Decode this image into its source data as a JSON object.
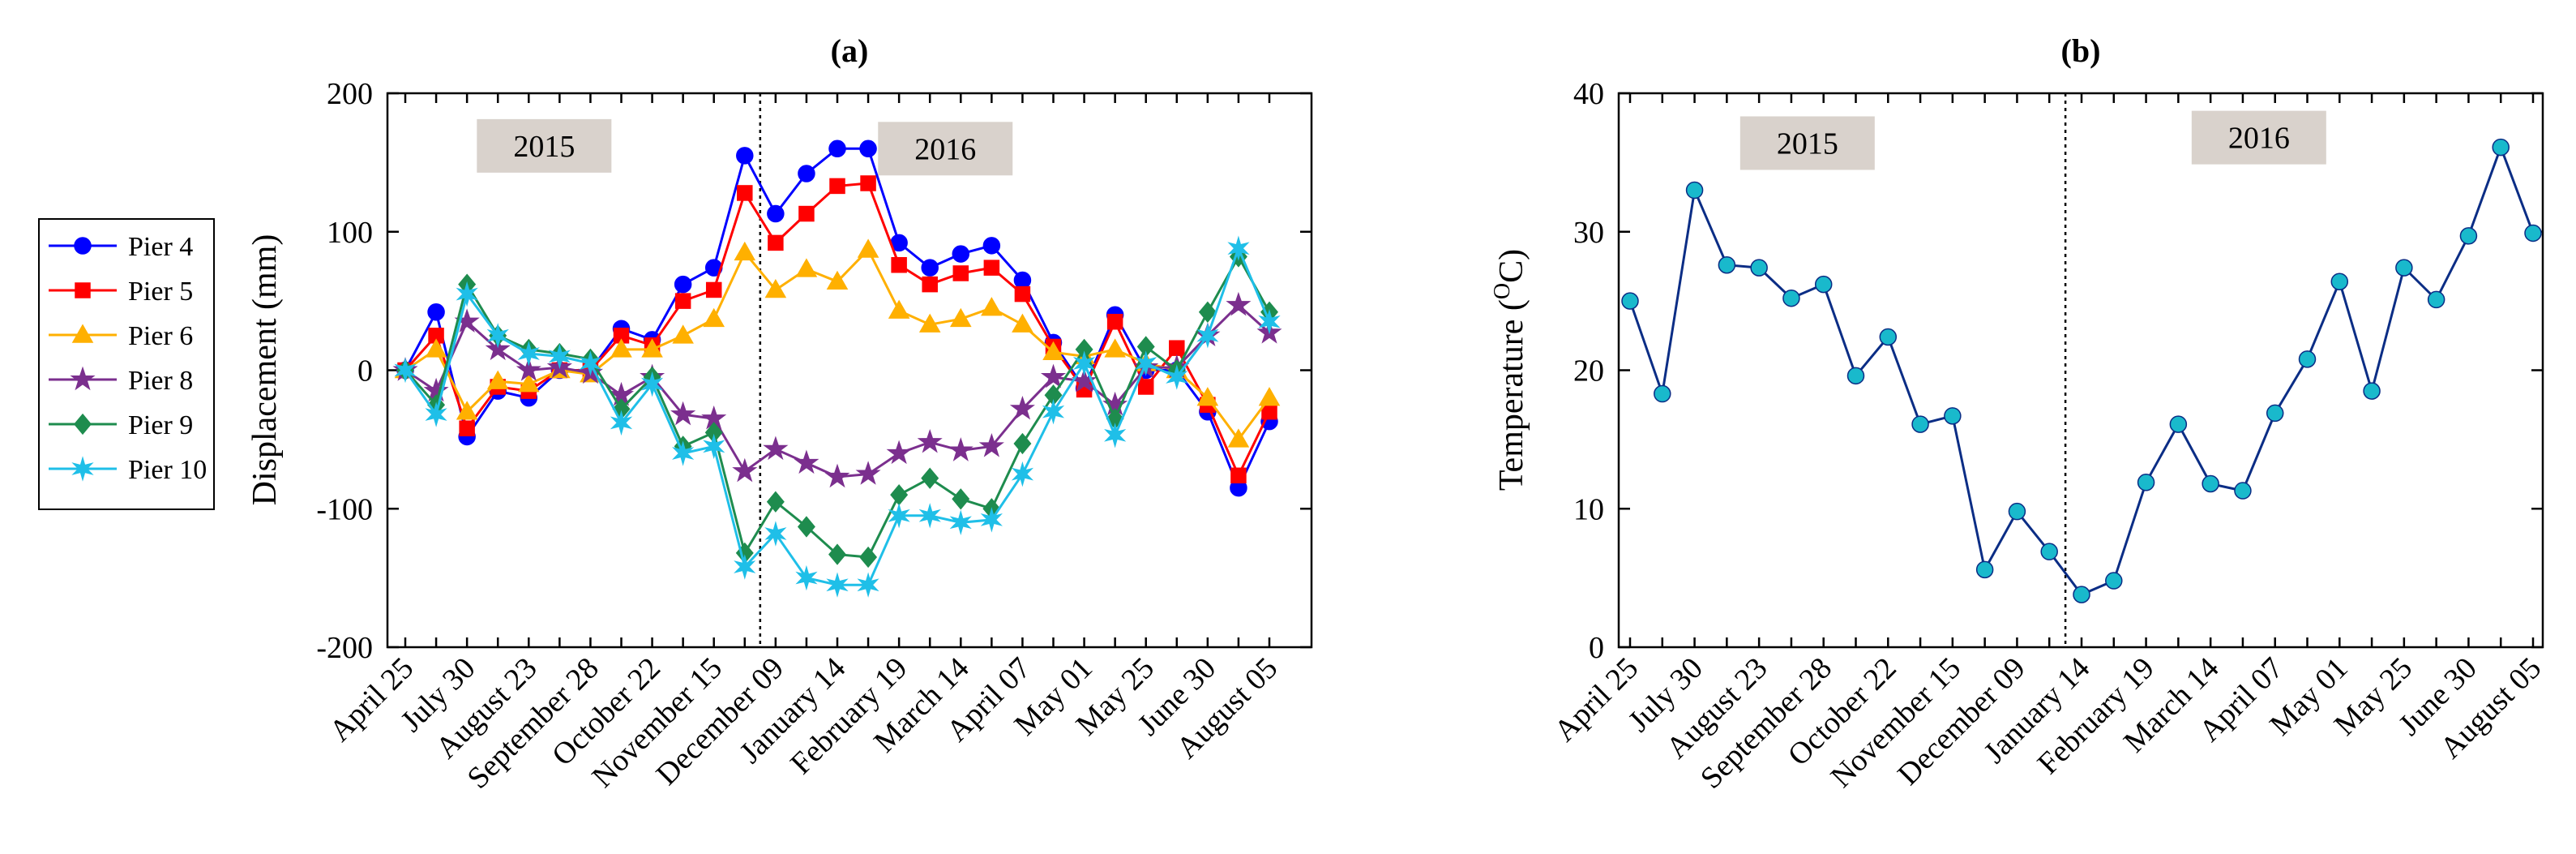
{
  "chart_data": [
    {
      "type": "line",
      "panel_label": "(a)",
      "xlabel": "",
      "ylabel": "Displacement (mm)",
      "ylim": [
        -200,
        200
      ],
      "yticks": [
        -200,
        -100,
        0,
        100,
        200
      ],
      "xtick_labels": [
        "April 25",
        "July 30",
        "August 23",
        "September 28",
        "October 22",
        "November 15",
        "December 09",
        "January 14",
        "February 19",
        "March 14",
        "April 07",
        "May 01",
        "May 25",
        "June 30",
        "August 05"
      ],
      "legend_position": "left-outside",
      "annotations": [
        {
          "text": "2015",
          "x_index": 4.5,
          "y": 162
        },
        {
          "text": "2016",
          "x_index": 17.5,
          "y": 160
        }
      ],
      "divider_x_index": 11.5,
      "series": [
        {
          "name": "Pier 4",
          "color": "#0000ff",
          "marker": "circle",
          "values": [
            0,
            42,
            -48,
            -15,
            -20,
            0,
            0,
            30,
            22,
            62,
            74,
            155,
            113,
            142,
            160,
            160,
            92,
            74,
            84,
            90,
            65,
            20,
            -13,
            40,
            0,
            0,
            -30,
            -85,
            -37
          ]
        },
        {
          "name": "Pier 5",
          "color": "#ff0000",
          "marker": "square",
          "values": [
            0,
            25,
            -42,
            -12,
            -15,
            0,
            0,
            25,
            18,
            50,
            58,
            128,
            92,
            113,
            133,
            135,
            76,
            62,
            70,
            74,
            55,
            17,
            -14,
            35,
            -12,
            16,
            -25,
            -76,
            -30
          ]
        },
        {
          "name": "Pier 6",
          "color": "#ffb000",
          "marker": "triangle-up",
          "values": [
            0,
            15,
            -30,
            -8,
            -10,
            0,
            -3,
            15,
            15,
            25,
            37,
            85,
            58,
            73,
            64,
            87,
            43,
            33,
            37,
            45,
            33,
            13,
            10,
            15,
            5,
            0,
            -20,
            -50,
            -20
          ]
        },
        {
          "name": "Pier 8",
          "color": "#7b2f8e",
          "marker": "star",
          "values": [
            0,
            -15,
            35,
            15,
            0,
            2,
            -2,
            -18,
            -5,
            -32,
            -35,
            -73,
            -57,
            -67,
            -77,
            -75,
            -60,
            -52,
            -58,
            -55,
            -28,
            -5,
            -8,
            -25,
            2,
            2,
            25,
            47,
            27
          ]
        },
        {
          "name": "Pier 9",
          "color": "#1e8c4e",
          "marker": "diamond",
          "values": [
            0,
            -25,
            62,
            25,
            15,
            12,
            8,
            -28,
            -5,
            -55,
            -45,
            -132,
            -95,
            -113,
            -133,
            -135,
            -90,
            -78,
            -93,
            -100,
            -53,
            -18,
            15,
            -35,
            17,
            0,
            42,
            82,
            42
          ]
        },
        {
          "name": "Pier 10",
          "color": "#1fbfe8",
          "marker": "hexstar",
          "values": [
            0,
            -32,
            55,
            25,
            12,
            10,
            5,
            -38,
            -10,
            -60,
            -55,
            -142,
            -118,
            -150,
            -155,
            -155,
            -105,
            -105,
            -110,
            -108,
            -75,
            -30,
            5,
            -47,
            5,
            -5,
            25,
            88,
            35
          ]
        }
      ]
    },
    {
      "type": "line",
      "panel_label": "(b)",
      "xlabel": "",
      "ylabel": "Temperature (°C)",
      "ylabel_main": "Temperature (",
      "ylabel_super": "O",
      "ylabel_tail": "C)",
      "ylim": [
        0,
        40
      ],
      "yticks": [
        0,
        10,
        20,
        30,
        40
      ],
      "xtick_labels": [
        "April 25",
        "July 30",
        "August 23",
        "September 28",
        "October 22",
        "November 15",
        "December 09",
        "January 14",
        "February 19",
        "March 14",
        "April 07",
        "May 01",
        "May 25",
        "June 30",
        "August 05"
      ],
      "annotations": [
        {
          "text": "2015",
          "x_index": 5.5,
          "y": 36.4
        },
        {
          "text": "2016",
          "x_index": 19.5,
          "y": 36.8
        }
      ],
      "divider_x_index": 13.5,
      "series": [
        {
          "name": "Temperature",
          "color": "#0b2d85",
          "marker_fill": "#19b9cc",
          "marker": "circle",
          "values": [
            25,
            18.3,
            33,
            27.6,
            27.4,
            25.2,
            26.2,
            19.6,
            22.4,
            16.1,
            16.7,
            5.6,
            9.8,
            6.9,
            3.8,
            4.8,
            11.9,
            16.1,
            11.8,
            11.3,
            16.9,
            20.8,
            26.4,
            18.5,
            27.4,
            25.1,
            29.7,
            36.1,
            29.9
          ]
        }
      ]
    }
  ]
}
